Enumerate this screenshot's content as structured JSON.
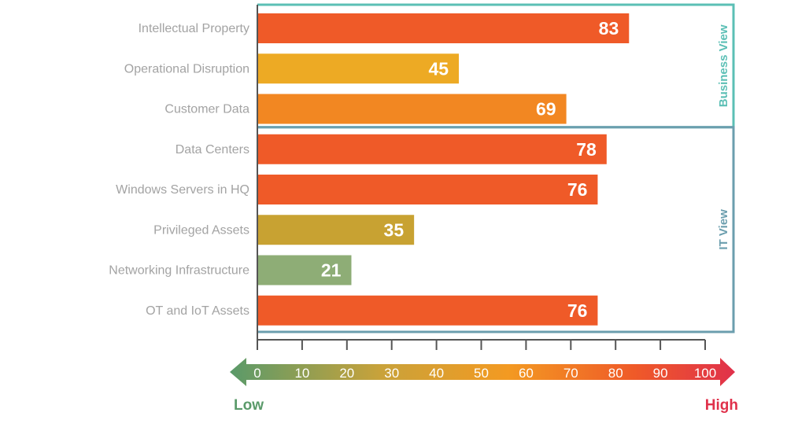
{
  "chart_data": {
    "type": "bar",
    "orientation": "horizontal",
    "categories": [
      "Intellectual Property",
      "Operational Disruption",
      "Customer Data",
      "Data Centers",
      "Windows Servers in HQ",
      "Privileged Assets",
      "Networking Infrastructure",
      "OT and IoT Assets"
    ],
    "values": [
      83,
      45,
      69,
      78,
      76,
      35,
      21,
      76
    ],
    "bar_colors": [
      "#ef5a28",
      "#edaa24",
      "#f28722",
      "#ef5a28",
      "#ef5a28",
      "#c8a232",
      "#8ead76",
      "#ef5a28"
    ],
    "xlim": [
      0,
      100
    ],
    "xticks": [
      "0",
      "10",
      "20",
      "30",
      "40",
      "50",
      "60",
      "70",
      "80",
      "90",
      "100"
    ],
    "groups": [
      {
        "label": "Business View",
        "color": "#5bbfb5",
        "categories": [
          "Intellectual Property",
          "Operational Disruption",
          "Customer Data"
        ]
      },
      {
        "label": "IT View",
        "color": "#6b9eae",
        "categories": [
          "Data Centers",
          "Windows Servers in HQ",
          "Privileged Assets",
          "Networking Infrastructure",
          "OT and IoT Assets"
        ]
      }
    ],
    "scale": {
      "low_label": "Low",
      "high_label": "High",
      "low_color": "#5a9a6a",
      "high_color": "#e0314b",
      "gradient_colors": [
        "#5a9a6a",
        "#c9a23a",
        "#f39a22",
        "#ef5a28",
        "#e0314b"
      ]
    },
    "grid": false,
    "legend": "none"
  }
}
